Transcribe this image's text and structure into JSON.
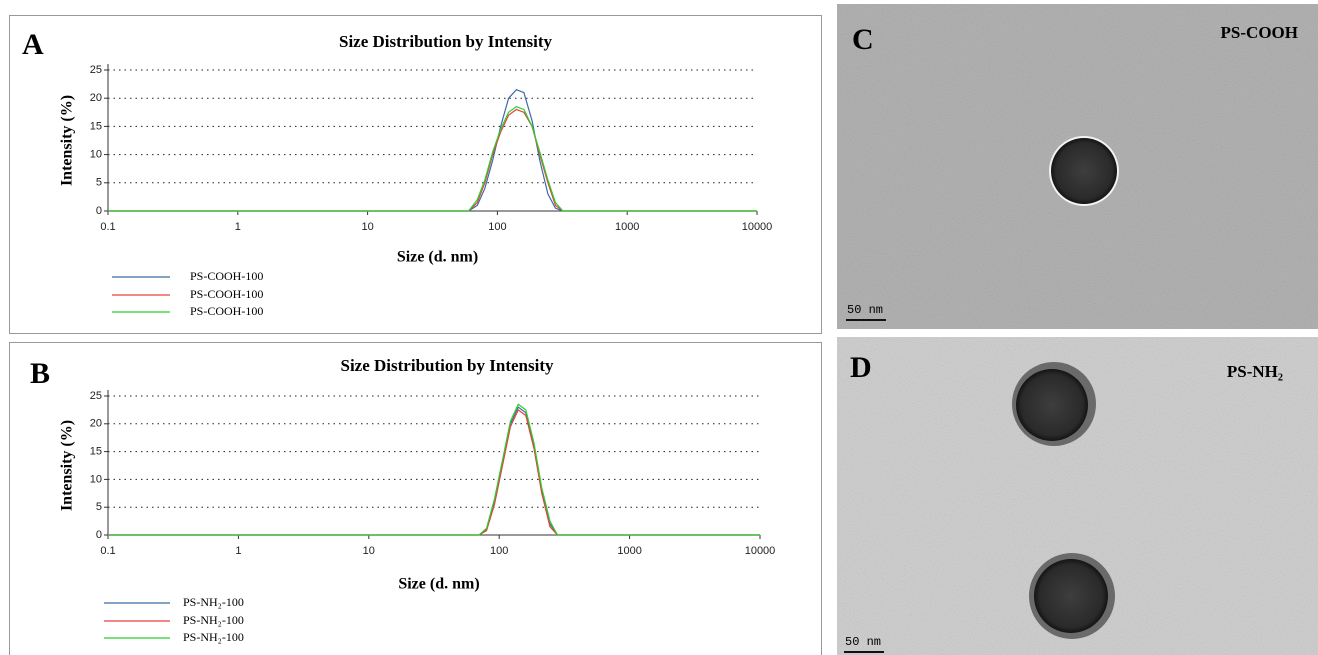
{
  "chart_data": [
    {
      "type": "line",
      "label": "A",
      "title": "Size Distribution by Intensity",
      "x_label": "Size (d. nm)",
      "y_label": "Intensity (%)",
      "xscale": "log",
      "xlim": [
        0.1,
        10000
      ],
      "xticks": [
        0.1,
        1,
        10,
        100,
        1000,
        10000
      ],
      "ylim": [
        0,
        25
      ],
      "yticks": [
        0,
        5,
        10,
        15,
        20,
        25
      ],
      "grid": true,
      "x": [
        0.1,
        60,
        70,
        80,
        92,
        106,
        122,
        140,
        160,
        185,
        212,
        245,
        280,
        320,
        10000
      ],
      "series": [
        {
          "name": "PS-COOH-100",
          "color": "#3b6aa8",
          "values": [
            0,
            0,
            1,
            4,
            9,
            15,
            20,
            21.5,
            21,
            16,
            9,
            3,
            0.5,
            0,
            0
          ]
        },
        {
          "name": "PS-COOH-100",
          "color": "#e8403e",
          "values": [
            0,
            0,
            1.5,
            5,
            10,
            14,
            17,
            18,
            17.5,
            15,
            10,
            5,
            1,
            0,
            0
          ]
        },
        {
          "name": "PS-COOH-100",
          "color": "#2bcf2b",
          "values": [
            0,
            0,
            2,
            5.5,
            10.5,
            14.5,
            17.5,
            18.5,
            18,
            15,
            10.5,
            5.5,
            1.5,
            0,
            0
          ]
        }
      ]
    },
    {
      "type": "line",
      "label": "B",
      "title": "Size Distribution by Intensity",
      "x_label": "Size (d. nm)",
      "y_label": "Intensity (%)",
      "xscale": "log",
      "xlim": [
        0.1,
        10000
      ],
      "xticks": [
        0.1,
        1,
        10,
        100,
        1000,
        10000
      ],
      "ylim": [
        0,
        25
      ],
      "yticks": [
        0,
        5,
        10,
        15,
        20,
        25
      ],
      "grid": true,
      "x": [
        0.1,
        70,
        80,
        92,
        106,
        122,
        140,
        160,
        185,
        212,
        245,
        280,
        10000
      ],
      "series": [
        {
          "name": "PS-NH₂-100",
          "color": "#3b6aa8",
          "values": [
            0,
            0,
            1,
            6,
            13,
            20,
            23,
            22,
            16,
            8,
            2,
            0,
            0
          ]
        },
        {
          "name": "PS-NH₂-100",
          "color": "#e8403e",
          "values": [
            0,
            0,
            0.8,
            5.5,
            12.5,
            19.5,
            22.5,
            21.5,
            15.5,
            7.5,
            1.5,
            0,
            0
          ]
        },
        {
          "name": "PS-NH₂-100",
          "color": "#2bcf2b",
          "values": [
            0,
            0,
            1.2,
            6.5,
            13.5,
            20.5,
            23.5,
            22.5,
            16.5,
            8.5,
            2.5,
            0,
            0
          ]
        }
      ]
    }
  ],
  "images": [
    {
      "letter": "C",
      "label": "PS-COOH",
      "scale": "50 nm"
    },
    {
      "letter": "D",
      "label": "PS-NH₂",
      "scale": "50 nm"
    }
  ]
}
